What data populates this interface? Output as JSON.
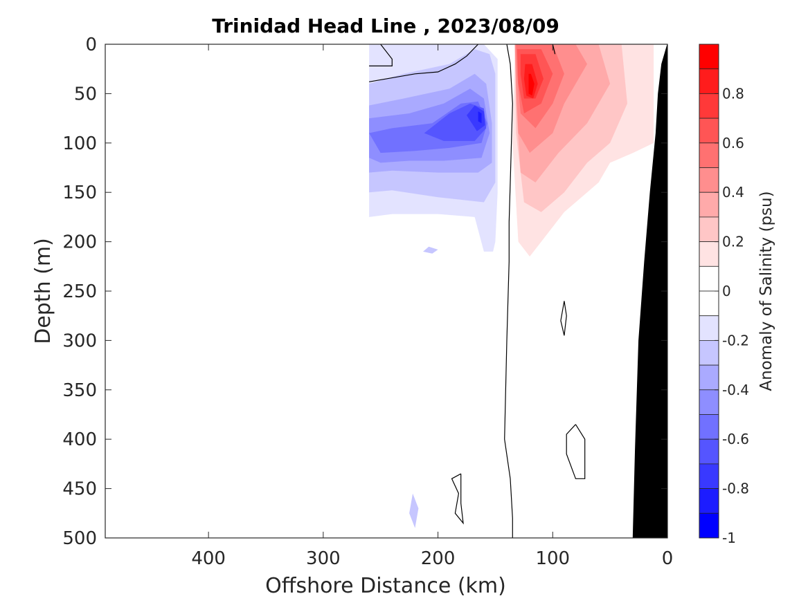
{
  "chart_data": {
    "type": "heatmap",
    "title": "Trinidad Head Line , 2023/08/09",
    "xlabel": "Offshore Distance (km)",
    "ylabel": "Depth (m)",
    "colorbar_label": "Anomaly of Salinity (psu)",
    "x_range": [
      490,
      0
    ],
    "x_direction": "reversed",
    "y_range": [
      0,
      500
    ],
    "y_direction": "down",
    "x_ticks": [
      {
        "value": 400,
        "label": "400"
      },
      {
        "value": 300,
        "label": "300"
      },
      {
        "value": 200,
        "label": "200"
      },
      {
        "value": 100,
        "label": "100"
      },
      {
        "value": 0,
        "label": "0"
      }
    ],
    "y_ticks": [
      {
        "value": 0,
        "label": "0"
      },
      {
        "value": 50,
        "label": "50"
      },
      {
        "value": 100,
        "label": "100"
      },
      {
        "value": 150,
        "label": "150"
      },
      {
        "value": 200,
        "label": "200"
      },
      {
        "value": 250,
        "label": "250"
      },
      {
        "value": 300,
        "label": "300"
      },
      {
        "value": 350,
        "label": "350"
      },
      {
        "value": 400,
        "label": "400"
      },
      {
        "value": 450,
        "label": "450"
      },
      {
        "value": 500,
        "label": "500"
      }
    ],
    "colorbar": {
      "range": [
        -1,
        1
      ],
      "ticks": [
        {
          "value": 0.8,
          "label": "0.8"
        },
        {
          "value": 0.6,
          "label": "0.6"
        },
        {
          "value": 0.4,
          "label": "0.4"
        },
        {
          "value": 0.2,
          "label": "0.2"
        },
        {
          "value": 0,
          "label": "0"
        },
        {
          "value": -0.2,
          "label": "-0.2"
        },
        {
          "value": -0.4,
          "label": "-0.4"
        },
        {
          "value": -0.6,
          "label": "-0.6"
        },
        {
          "value": -0.8,
          "label": "-0.8"
        },
        {
          "value": -1,
          "label": "-1"
        }
      ],
      "levels": [
        {
          "from": 0.9,
          "to": 1.0,
          "color": "#ff0000"
        },
        {
          "from": 0.8,
          "to": 0.9,
          "color": "#ff1c1c"
        },
        {
          "from": 0.7,
          "to": 0.8,
          "color": "#ff3939"
        },
        {
          "from": 0.6,
          "to": 0.7,
          "color": "#ff5555"
        },
        {
          "from": 0.5,
          "to": 0.6,
          "color": "#ff7171"
        },
        {
          "from": 0.4,
          "to": 0.5,
          "color": "#ff8e8e"
        },
        {
          "from": 0.3,
          "to": 0.4,
          "color": "#ffaaaa"
        },
        {
          "from": 0.2,
          "to": 0.3,
          "color": "#ffc6c6"
        },
        {
          "from": 0.1,
          "to": 0.2,
          "color": "#ffe3e3"
        },
        {
          "from": 0.0,
          "to": 0.1,
          "color": "#ffffff"
        },
        {
          "from": -0.1,
          "to": 0.0,
          "color": "#ffffff"
        },
        {
          "from": -0.2,
          "to": -0.1,
          "color": "#e3e3ff"
        },
        {
          "from": -0.3,
          "to": -0.2,
          "color": "#c6c6ff"
        },
        {
          "from": -0.4,
          "to": -0.3,
          "color": "#aaaaff"
        },
        {
          "from": -0.5,
          "to": -0.4,
          "color": "#8e8eff"
        },
        {
          "from": -0.6,
          "to": -0.5,
          "color": "#7171ff"
        },
        {
          "from": -0.7,
          "to": -0.6,
          "color": "#5555ff"
        },
        {
          "from": -0.8,
          "to": -0.7,
          "color": "#3939ff"
        },
        {
          "from": -0.9,
          "to": -0.8,
          "color": "#1c1cff"
        },
        {
          "from": -1.0,
          "to": -0.9,
          "color": "#0000ff"
        }
      ]
    },
    "anomaly_regions": [
      {
        "name": "negative",
        "level": -0.1,
        "points": [
          [
            260,
            0
          ],
          [
            180,
            0
          ],
          [
            160,
            0
          ],
          [
            148,
            15
          ],
          [
            148,
            150
          ],
          [
            150,
            200
          ],
          [
            152,
            210
          ],
          [
            160,
            210
          ],
          [
            168,
            175
          ],
          [
            200,
            172
          ],
          [
            240,
            172
          ],
          [
            260,
            175
          ]
        ]
      },
      {
        "name": "negative",
        "level": -0.2,
        "points": [
          [
            260,
            40
          ],
          [
            230,
            30
          ],
          [
            190,
            20
          ],
          [
            168,
            5
          ],
          [
            155,
            10
          ],
          [
            150,
            30
          ],
          [
            150,
            140
          ],
          [
            160,
            160
          ],
          [
            200,
            155
          ],
          [
            240,
            148
          ],
          [
            260,
            150
          ]
        ]
      },
      {
        "name": "negative",
        "level": -0.3,
        "points": [
          [
            260,
            62
          ],
          [
            230,
            55
          ],
          [
            190,
            45
          ],
          [
            168,
            30
          ],
          [
            158,
            40
          ],
          [
            153,
            80
          ],
          [
            153,
            120
          ],
          [
            165,
            130
          ],
          [
            200,
            130
          ],
          [
            240,
            128
          ],
          [
            260,
            130
          ]
        ]
      },
      {
        "name": "negative",
        "level": -0.4,
        "points": [
          [
            260,
            75
          ],
          [
            225,
            70
          ],
          [
            195,
            60
          ],
          [
            172,
            45
          ],
          [
            160,
            55
          ],
          [
            155,
            90
          ],
          [
            162,
            115
          ],
          [
            195,
            118
          ],
          [
            225,
            118
          ],
          [
            250,
            120
          ],
          [
            260,
            115
          ]
        ]
      },
      {
        "name": "negative",
        "level": -0.5,
        "points": [
          [
            260,
            90
          ],
          [
            240,
            85
          ],
          [
            205,
            80
          ],
          [
            180,
            60
          ],
          [
            165,
            58
          ],
          [
            157,
            80
          ],
          [
            162,
            100
          ],
          [
            190,
            105
          ],
          [
            220,
            108
          ],
          [
            250,
            110
          ]
        ]
      },
      {
        "name": "negative",
        "level": -0.6,
        "points": [
          [
            212,
            90
          ],
          [
            190,
            70
          ],
          [
            172,
            60
          ],
          [
            160,
            65
          ],
          [
            158,
            85
          ],
          [
            168,
            98
          ],
          [
            195,
            98
          ]
        ]
      },
      {
        "name": "negative",
        "level": -0.7,
        "points": [
          [
            175,
            72
          ],
          [
            168,
            62
          ],
          [
            160,
            68
          ],
          [
            159,
            82
          ],
          [
            166,
            88
          ]
        ]
      },
      {
        "name": "negative",
        "level": -0.8,
        "points": [
          [
            165,
            68
          ],
          [
            162,
            70
          ],
          [
            162,
            80
          ],
          [
            165,
            78
          ]
        ]
      },
      {
        "name": "negative",
        "level": -0.2,
        "points": [
          [
            222,
            455
          ],
          [
            225,
            475
          ],
          [
            220,
            490
          ],
          [
            217,
            470
          ]
        ]
      },
      {
        "name": "negative",
        "level": -0.2,
        "points": [
          [
            213,
            210
          ],
          [
            205,
            212
          ],
          [
            200,
            208
          ],
          [
            208,
            205
          ]
        ]
      },
      {
        "name": "positive",
        "level": 0.1,
        "points": [
          [
            133,
            0
          ],
          [
            12,
            0
          ],
          [
            12,
            100
          ],
          [
            30,
            110
          ],
          [
            50,
            120
          ],
          [
            60,
            140
          ],
          [
            70,
            150
          ],
          [
            90,
            170
          ],
          [
            110,
            200
          ],
          [
            120,
            215
          ],
          [
            130,
            200
          ],
          [
            135,
            100
          ]
        ]
      },
      {
        "name": "positive",
        "level": 0.2,
        "points": [
          [
            133,
            0
          ],
          [
            40,
            0
          ],
          [
            35,
            60
          ],
          [
            50,
            100
          ],
          [
            70,
            120
          ],
          [
            90,
            150
          ],
          [
            110,
            170
          ],
          [
            125,
            160
          ],
          [
            132,
            90
          ]
        ]
      },
      {
        "name": "positive",
        "level": 0.3,
        "points": [
          [
            133,
            0
          ],
          [
            60,
            0
          ],
          [
            50,
            40
          ],
          [
            70,
            80
          ],
          [
            95,
            110
          ],
          [
            115,
            140
          ],
          [
            128,
            130
          ],
          [
            132,
            60
          ]
        ]
      },
      {
        "name": "positive",
        "level": 0.4,
        "points": [
          [
            133,
            0
          ],
          [
            80,
            0
          ],
          [
            70,
            20
          ],
          [
            90,
            60
          ],
          [
            100,
            90
          ],
          [
            120,
            110
          ],
          [
            130,
            90
          ],
          [
            132,
            40
          ]
        ]
      },
      {
        "name": "positive",
        "level": 0.5,
        "points": [
          [
            132,
            0
          ],
          [
            100,
            0
          ],
          [
            90,
            30
          ],
          [
            100,
            60
          ],
          [
            115,
            85
          ],
          [
            128,
            70
          ],
          [
            131,
            30
          ]
        ]
      },
      {
        "name": "positive",
        "level": 0.6,
        "points": [
          [
            131,
            5
          ],
          [
            110,
            5
          ],
          [
            100,
            30
          ],
          [
            110,
            60
          ],
          [
            125,
            70
          ],
          [
            130,
            40
          ]
        ]
      },
      {
        "name": "positive",
        "level": 0.7,
        "points": [
          [
            128,
            10
          ],
          [
            115,
            10
          ],
          [
            108,
            35
          ],
          [
            115,
            55
          ],
          [
            125,
            55
          ],
          [
            128,
            30
          ]
        ]
      },
      {
        "name": "positive",
        "level": 0.8,
        "points": [
          [
            124,
            20
          ],
          [
            118,
            20
          ],
          [
            113,
            40
          ],
          [
            117,
            55
          ],
          [
            123,
            52
          ],
          [
            125,
            35
          ]
        ]
      },
      {
        "name": "positive",
        "level": 0.9,
        "points": [
          [
            121,
            30
          ],
          [
            119,
            30
          ],
          [
            116,
            40
          ],
          [
            118,
            52
          ],
          [
            121,
            50
          ],
          [
            121,
            40
          ]
        ]
      }
    ],
    "zero_contours": [
      [
        [
          140,
          0
        ],
        [
          137,
          20
        ],
        [
          135,
          60
        ],
        [
          136,
          100
        ],
        [
          137,
          140
        ],
        [
          138,
          180
        ],
        [
          138,
          220
        ],
        [
          140,
          300
        ],
        [
          142,
          400
        ],
        [
          137,
          440
        ],
        [
          135,
          480
        ],
        [
          135,
          500
        ]
      ],
      [
        [
          260,
          38
        ],
        [
          220,
          30
        ],
        [
          200,
          28
        ],
        [
          185,
          20
        ],
        [
          175,
          12
        ],
        [
          165,
          0
        ]
      ],
      [
        [
          260,
          22
        ],
        [
          240,
          22
        ],
        [
          240,
          15
        ],
        [
          250,
          0
        ]
      ],
      [
        [
          90,
          260
        ],
        [
          88,
          275
        ],
        [
          90,
          295
        ],
        [
          93,
          280
        ],
        [
          90,
          260
        ]
      ],
      [
        [
          80,
          385
        ],
        [
          88,
          395
        ],
        [
          88,
          415
        ],
        [
          80,
          440
        ],
        [
          72,
          440
        ],
        [
          72,
          400
        ],
        [
          80,
          385
        ]
      ],
      [
        [
          180,
          435
        ],
        [
          188,
          440
        ],
        [
          182,
          455
        ],
        [
          185,
          475
        ],
        [
          178,
          485
        ],
        [
          180,
          465
        ],
        [
          180,
          435
        ]
      ],
      [
        [
          100,
          0
        ],
        [
          98,
          10
        ]
      ]
    ],
    "seafloor": [
      [
        30,
        500
      ],
      [
        28,
        410
      ],
      [
        25,
        300
      ],
      [
        20,
        220
      ],
      [
        15,
        150
      ],
      [
        10,
        90
      ],
      [
        8,
        50
      ],
      [
        5,
        20
      ],
      [
        0,
        0
      ],
      [
        0,
        500
      ]
    ]
  }
}
